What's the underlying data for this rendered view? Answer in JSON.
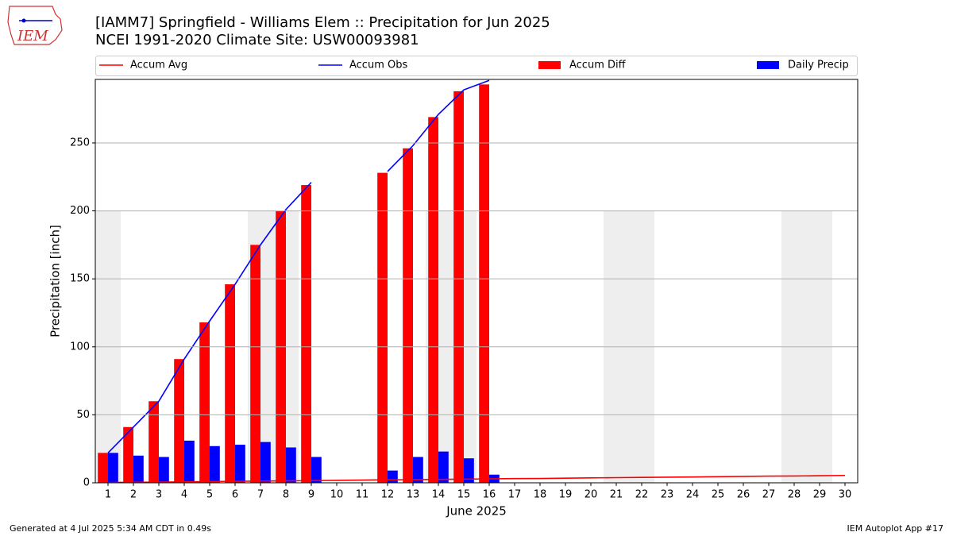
{
  "logo": "IEM",
  "footer_left": "Generated at 4 Jul 2025 5:34 AM CDT in 0.49s",
  "footer_right": "IEM Autoplot App #17",
  "chart_data": {
    "type": "bar",
    "title": "[IAMM7] Springfield - Williams Elem :: Precipitation for Jun 2025",
    "subtitle": "NCEI 1991-2020 Climate Site: USW00093981",
    "x_label": "June 2025",
    "y_label": "Precipitation [inch]",
    "x": [
      1,
      2,
      3,
      4,
      5,
      6,
      7,
      8,
      9,
      10,
      11,
      12,
      13,
      14,
      15,
      16,
      17,
      18,
      19,
      20,
      21,
      22,
      23,
      24,
      25,
      26,
      27,
      28,
      29,
      30
    ],
    "xlim": [
      0.5,
      30.5
    ],
    "xticks": [
      1,
      2,
      3,
      4,
      5,
      6,
      7,
      8,
      9,
      10,
      11,
      12,
      13,
      14,
      15,
      16,
      17,
      18,
      19,
      20,
      21,
      22,
      23,
      24,
      25,
      26,
      27,
      28,
      29,
      30
    ],
    "ylim": [
      0,
      296.7
    ],
    "yticks": [
      0,
      50,
      100,
      150,
      200,
      250
    ],
    "grid": true,
    "shaded_spans": [
      [
        0.5,
        1.5,
        200
      ],
      [
        6.5,
        8.5,
        200
      ],
      [
        13.5,
        15.5,
        200
      ],
      [
        20.5,
        22.5,
        200
      ],
      [
        27.5,
        29.5,
        200
      ]
    ],
    "shade_color": "#eeeeee",
    "series": [
      {
        "name": "Accum Avg",
        "type": "line",
        "color": "#ff0000",
        "values": [
          0.2,
          0.4,
          0.5,
          0.7,
          0.9,
          1.1,
          1.3,
          1.4,
          1.6,
          1.8,
          2.0,
          2.2,
          2.3,
          2.5,
          2.7,
          2.9,
          3.1,
          3.2,
          3.4,
          3.6,
          3.8,
          4.0,
          4.1,
          4.3,
          4.5,
          4.7,
          4.9,
          5.0,
          5.2,
          5.4
        ]
      },
      {
        "name": "Accum Obs",
        "type": "line",
        "color": "#0000ff",
        "values": [
          22,
          41,
          60,
          91,
          119,
          146,
          175,
          201,
          221,
          null,
          null,
          229,
          248,
          271,
          289,
          296,
          null,
          null,
          null,
          null,
          null,
          null,
          null,
          null,
          null,
          null,
          null,
          null,
          null,
          null
        ]
      },
      {
        "name": "Accum Diff",
        "type": "bar",
        "color": "#ff0000",
        "values": [
          22,
          41,
          60,
          91,
          118,
          146,
          175,
          200,
          219,
          null,
          null,
          228,
          246,
          269,
          288,
          293,
          null,
          null,
          null,
          null,
          null,
          null,
          null,
          null,
          null,
          null,
          null,
          null,
          null,
          null
        ]
      },
      {
        "name": "Daily Precip",
        "type": "bar",
        "color": "#0000ff",
        "values": [
          22,
          20,
          19,
          31,
          27,
          28,
          30,
          26,
          19,
          null,
          null,
          9,
          19,
          23,
          18,
          6,
          null,
          null,
          null,
          null,
          null,
          null,
          null,
          null,
          null,
          null,
          null,
          null,
          null,
          null
        ]
      }
    ]
  }
}
